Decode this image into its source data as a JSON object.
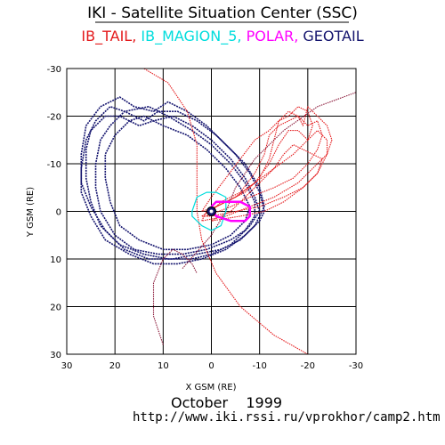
{
  "chart_data": {
    "type": "line",
    "title": "IKI - Satellite Situation Center (SSC)",
    "legend": {
      "placement": "top-center",
      "entries": [
        {
          "name": "IB_TAIL",
          "color": "#e41a1c",
          "separator": ","
        },
        {
          "name": "IB_MAGION_5",
          "color": "#00dddd",
          "separator": ","
        },
        {
          "name": "POLAR",
          "color": "#ff00ff",
          "separator": ","
        },
        {
          "name": "GEOTAIL",
          "color": "#14146e",
          "separator": ""
        }
      ]
    },
    "xlabel": "X GSM (RE)",
    "ylabel": "Y GSM (RE)",
    "xlim": [
      30,
      -30
    ],
    "ylim": [
      30,
      -30
    ],
    "x_ticks": [
      30,
      20,
      10,
      0,
      -10,
      -20,
      -30
    ],
    "y_ticks": [
      -30,
      -20,
      -10,
      0,
      10,
      20,
      30
    ],
    "grid": true,
    "footer": {
      "date": "October    1999",
      "url": "http://www.iki.rssi.ru/vprokhor/camp2.htm"
    },
    "series": [
      {
        "name": "GEOTAIL",
        "color": "#14146e",
        "points": [
          [
            -10,
            0
          ],
          [
            -9,
            -3
          ],
          [
            -7,
            -7
          ],
          [
            -4,
            -11
          ],
          [
            0,
            -15
          ],
          [
            4,
            -18
          ],
          [
            8,
            -20
          ],
          [
            12,
            -19
          ],
          [
            15,
            -18
          ],
          [
            19,
            -20
          ],
          [
            22,
            -20
          ],
          [
            25,
            -17
          ],
          [
            26,
            -13
          ],
          [
            26,
            -7
          ],
          [
            25,
            -2
          ],
          [
            23,
            3
          ],
          [
            19,
            7
          ],
          [
            14,
            9
          ],
          [
            9,
            10
          ],
          [
            4,
            10
          ],
          [
            0,
            9
          ],
          [
            -4,
            7
          ],
          [
            -8,
            3
          ],
          [
            -10,
            0
          ]
        ]
      },
      {
        "name": "GEOTAIL",
        "color": "#14146e",
        "points": [
          [
            -11,
            0
          ],
          [
            -10,
            -4
          ],
          [
            -8,
            -8
          ],
          [
            -5,
            -12
          ],
          [
            -1,
            -16
          ],
          [
            3,
            -19
          ],
          [
            7,
            -21
          ],
          [
            11,
            -21
          ],
          [
            14,
            -19
          ],
          [
            18,
            -21
          ],
          [
            21,
            -22
          ],
          [
            24,
            -19
          ],
          [
            26,
            -15
          ],
          [
            27,
            -9
          ],
          [
            27,
            -4
          ],
          [
            25,
            1
          ],
          [
            22,
            6
          ],
          [
            17,
            9
          ],
          [
            12,
            11
          ],
          [
            7,
            11
          ],
          [
            2,
            10
          ],
          [
            -3,
            8
          ],
          [
            -7,
            5
          ],
          [
            -10,
            2
          ],
          [
            -11,
            0
          ]
        ]
      },
      {
        "name": "GEOTAIL",
        "color": "#14146e",
        "points": [
          [
            -11,
            -1
          ],
          [
            -10,
            -5
          ],
          [
            -7,
            -10
          ],
          [
            -3,
            -14
          ],
          [
            1,
            -18
          ],
          [
            5,
            -21
          ],
          [
            9,
            -23
          ],
          [
            12,
            -21
          ],
          [
            16,
            -22
          ],
          [
            19,
            -24
          ],
          [
            23,
            -22
          ],
          [
            26,
            -18
          ],
          [
            27,
            -12
          ],
          [
            27,
            -6
          ],
          [
            25,
            -1
          ],
          [
            22,
            4
          ],
          [
            18,
            8
          ],
          [
            13,
            10
          ],
          [
            8,
            10
          ],
          [
            3,
            9
          ],
          [
            -2,
            8
          ],
          [
            -6,
            6
          ],
          [
            -9,
            3
          ],
          [
            -11,
            -1
          ]
        ]
      },
      {
        "name": "GEOTAIL",
        "color": "#14146e",
        "points": [
          [
            -9,
            1
          ],
          [
            -9,
            -2
          ],
          [
            -7,
            -6
          ],
          [
            -4,
            -10
          ],
          [
            0,
            -14
          ],
          [
            4,
            -17
          ],
          [
            9,
            -20
          ],
          [
            13,
            -22
          ],
          [
            18,
            -21
          ],
          [
            21,
            -18
          ],
          [
            23,
            -15
          ],
          [
            24,
            -10
          ],
          [
            24,
            -5
          ],
          [
            23,
            0
          ],
          [
            20,
            5
          ],
          [
            16,
            8
          ],
          [
            11,
            9
          ],
          [
            6,
            9
          ],
          [
            1,
            8
          ],
          [
            -4,
            6
          ],
          [
            -7,
            4
          ],
          [
            -9,
            1
          ]
        ]
      },
      {
        "name": "GEOTAIL",
        "color": "#14146e",
        "points": [
          [
            -7,
            2
          ],
          [
            -8,
            -1
          ],
          [
            -6,
            -5
          ],
          [
            -3,
            -9
          ],
          [
            1,
            -13
          ],
          [
            5,
            -16
          ],
          [
            10,
            -18
          ],
          [
            14,
            -20
          ],
          [
            17,
            -19
          ],
          [
            20,
            -16
          ],
          [
            22,
            -12
          ],
          [
            22,
            -7
          ],
          [
            21,
            -2
          ],
          [
            19,
            3
          ],
          [
            15,
            6
          ],
          [
            10,
            8
          ],
          [
            5,
            8
          ],
          [
            0,
            7
          ],
          [
            -4,
            5
          ],
          [
            -7,
            2
          ]
        ]
      },
      {
        "name": "IB_TAIL",
        "color": "#e41a1c",
        "points": [
          [
            2,
            2
          ],
          [
            1,
            0
          ],
          [
            -3,
            -2
          ],
          [
            -7,
            -4
          ],
          [
            -10,
            -7
          ],
          [
            -12,
            -11
          ],
          [
            -13,
            -15
          ],
          [
            -14,
            -19
          ],
          [
            -16,
            -21
          ],
          [
            -18,
            -20
          ],
          [
            -19,
            -18
          ],
          [
            -20,
            -22
          ],
          [
            -22,
            -20
          ],
          [
            -24,
            -18
          ],
          [
            -25,
            -15
          ],
          [
            -24,
            -12
          ],
          [
            -21,
            -9
          ],
          [
            -18,
            -6
          ],
          [
            -13,
            -3
          ],
          [
            -8,
            -1
          ],
          [
            -3,
            1
          ],
          [
            2,
            2
          ]
        ]
      },
      {
        "name": "IB_TAIL",
        "color": "#e41a1c",
        "points": [
          [
            2,
            1
          ],
          [
            -1,
            -1
          ],
          [
            -5,
            -3
          ],
          [
            -9,
            -6
          ],
          [
            -12,
            -10
          ],
          [
            -14,
            -14
          ],
          [
            -16,
            -17
          ],
          [
            -18,
            -17
          ],
          [
            -20,
            -15
          ],
          [
            -22,
            -17
          ],
          [
            -24,
            -15
          ],
          [
            -24,
            -12
          ],
          [
            -22,
            -8
          ],
          [
            -19,
            -5
          ],
          [
            -15,
            -3
          ],
          [
            -10,
            -1
          ],
          [
            -5,
            0
          ],
          [
            0,
            1
          ],
          [
            2,
            1
          ]
        ]
      },
      {
        "name": "IB_TAIL",
        "color": "#e41a1c",
        "points": [
          [
            1,
            1
          ],
          [
            -2,
            -2
          ],
          [
            -6,
            -4
          ],
          [
            -9,
            -8
          ],
          [
            -11,
            -12
          ],
          [
            -12,
            -16
          ],
          [
            -14,
            -18
          ],
          [
            -16,
            -19
          ],
          [
            -18,
            -20
          ],
          [
            -20,
            -18
          ],
          [
            -22,
            -19
          ],
          [
            -23,
            -16
          ],
          [
            -22,
            -13
          ],
          [
            -20,
            -10
          ],
          [
            -17,
            -7
          ],
          [
            -13,
            -5
          ],
          [
            -8,
            -3
          ],
          [
            -4,
            -1
          ],
          [
            1,
            1
          ]
        ]
      },
      {
        "name": "IB_TAIL",
        "color": "#e41a1c",
        "points": [
          [
            0,
            2
          ],
          [
            -4,
            0
          ],
          [
            -7,
            -3
          ],
          [
            -10,
            -6
          ],
          [
            -13,
            -9
          ],
          [
            -15,
            -12
          ],
          [
            -17,
            -14
          ],
          [
            -19,
            -13
          ],
          [
            -21,
            -12
          ],
          [
            -23,
            -11
          ],
          [
            -22,
            -8
          ],
          [
            -19,
            -5
          ],
          [
            -15,
            -2
          ],
          [
            -11,
            0
          ],
          [
            -6,
            1
          ],
          [
            0,
            2
          ]
        ]
      },
      {
        "name": "IB_TAIL",
        "color": "#e41a1c",
        "points": [
          [
            2,
            0
          ],
          [
            0,
            -3
          ],
          [
            -3,
            -7
          ],
          [
            -6,
            -11
          ],
          [
            -9,
            -15
          ],
          [
            -12,
            -17
          ],
          [
            -14,
            -19
          ],
          [
            -16,
            -20
          ],
          [
            -18,
            -22
          ],
          [
            -20,
            -21
          ],
          [
            -21,
            -18
          ],
          [
            -20,
            -15
          ],
          [
            -17,
            -12
          ],
          [
            -13,
            -9
          ],
          [
            -9,
            -6
          ],
          [
            -5,
            -3
          ],
          [
            -1,
            -1
          ],
          [
            2,
            0
          ]
        ]
      },
      {
        "name": "IB_TAIL",
        "color": "#e41a1c",
        "points": [
          [
            -20,
            30
          ],
          [
            -13,
            26
          ],
          [
            -6,
            20
          ],
          [
            -1,
            13
          ],
          [
            2,
            6
          ],
          [
            3,
            0
          ],
          [
            3,
            -7
          ],
          [
            3,
            -14
          ],
          [
            5,
            -21
          ],
          [
            9,
            -27
          ],
          [
            14,
            -30
          ]
        ]
      },
      {
        "name": "IB_TAIL",
        "color": "#8b1a3a",
        "points": [
          [
            6,
            12
          ],
          [
            0,
            5
          ],
          [
            -3,
            0
          ],
          [
            -5,
            -5
          ],
          [
            -9,
            -11
          ],
          [
            -15,
            -17
          ],
          [
            -22,
            -22
          ],
          [
            -30,
            -25
          ]
        ]
      },
      {
        "name": "IB_TAIL",
        "color": "#8b1a3a",
        "points": [
          [
            10,
            28
          ],
          [
            12,
            22
          ],
          [
            12,
            15
          ],
          [
            10,
            10
          ],
          [
            8,
            8
          ],
          [
            6,
            9
          ],
          [
            4,
            11
          ],
          [
            3,
            13
          ]
        ]
      },
      {
        "name": "IB_MAGION_5",
        "color": "#00dddd",
        "points": [
          [
            4,
            0
          ],
          [
            3,
            -3
          ],
          [
            1,
            -4
          ],
          [
            -1,
            -4
          ],
          [
            -3,
            -3
          ],
          [
            -3,
            0
          ],
          [
            -2,
            3
          ],
          [
            0,
            4
          ],
          [
            2,
            3
          ],
          [
            4,
            1
          ],
          [
            4,
            0
          ]
        ]
      },
      {
        "name": "POLAR",
        "color": "#ff00ff",
        "points": [
          [
            0,
            -1
          ],
          [
            -1,
            -2
          ],
          [
            -3,
            -2
          ],
          [
            -6,
            -2
          ],
          [
            -8,
            -1
          ],
          [
            -8,
            1
          ],
          [
            -7,
            2
          ],
          [
            -4,
            2
          ],
          [
            -1,
            1
          ],
          [
            0,
            -1
          ]
        ]
      }
    ]
  }
}
